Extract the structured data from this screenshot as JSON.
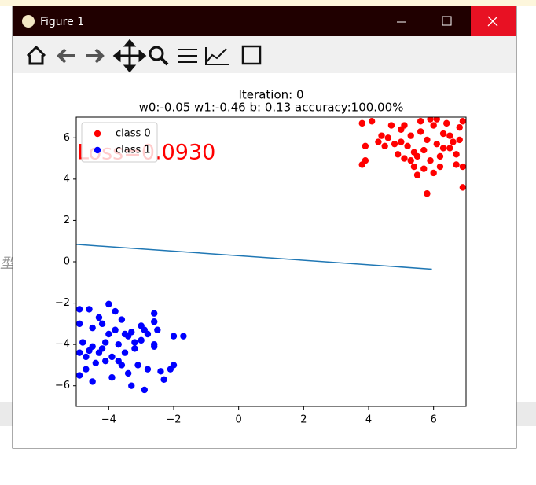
{
  "window": {
    "title": "Figure 1"
  },
  "background_text": "型",
  "chart_data": {
    "type": "scatter",
    "title": [
      "Iteration: 0",
      "w0:-0.05 w1:-0.46 b: 0.13 accuracy:100.00%"
    ],
    "annotation": {
      "text": "Loss=0.0930",
      "color": "red"
    },
    "xlim": [
      -5,
      7
    ],
    "ylim": [
      -7,
      7
    ],
    "xticks": [
      {
        "value": -4,
        "label": "−4"
      },
      {
        "value": -2,
        "label": "−2"
      },
      0,
      2,
      4,
      6
    ],
    "yticks": [
      {
        "value": -6,
        "label": "−6"
      },
      {
        "value": -4,
        "label": "−4"
      },
      {
        "value": -2,
        "label": "−2"
      },
      0,
      2,
      4,
      6
    ],
    "legend": "upper left",
    "series": [
      {
        "name": "class 0",
        "color": "red",
        "x": [
          3.8,
          4.1,
          4.4,
          3.9,
          3.8,
          3.9,
          4.5,
          4.7,
          4.8,
          5.0,
          5.1,
          5.3,
          5.2,
          5.4,
          5.5,
          5.6,
          5.8,
          5.7,
          5.9,
          6.0,
          6.1,
          6.2,
          6.3,
          6.5,
          6.6,
          6.7,
          6.8,
          6.9,
          6.9,
          5.8,
          6.0,
          5.5,
          5.1,
          4.9,
          6.4,
          6.2,
          5.9,
          5.6,
          6.9,
          6.7,
          5.3,
          4.3,
          6.5,
          5.0,
          6.1,
          5.7,
          6.3,
          4.6,
          6.8,
          5.4
        ],
        "values": [
          6.7,
          6.8,
          6.1,
          5.6,
          4.7,
          4.9,
          5.6,
          6.6,
          5.7,
          6.4,
          5.0,
          4.9,
          5.6,
          4.6,
          5.1,
          6.3,
          5.9,
          5.4,
          6.9,
          6.6,
          5.7,
          5.1,
          6.2,
          6.1,
          5.8,
          4.7,
          6.5,
          4.6,
          3.6,
          3.3,
          4.3,
          4.2,
          6.6,
          5.2,
          6.7,
          4.6,
          4.9,
          6.8,
          6.8,
          5.2,
          6.1,
          5.8,
          5.5,
          5.8,
          6.9,
          4.5,
          5.5,
          6.0,
          5.9,
          5.3
        ]
      },
      {
        "name": "class 1",
        "color": "blue",
        "x": [
          -4.9,
          -4.6,
          -4.3,
          -4.0,
          -3.6,
          -4.9,
          -4.5,
          -3.8,
          -3.4,
          -3.0,
          -2.6,
          -2.6,
          -2.8,
          -2.5,
          -1.7,
          -2.0,
          -2.6,
          -3.2,
          -3.7,
          -4.1,
          -4.5,
          -4.8,
          -4.9,
          -4.7,
          -4.4,
          -4.2,
          -3.9,
          -3.6,
          -3.4,
          -3.1,
          -2.8,
          -2.4,
          -2.3,
          -2.0,
          -2.1,
          -2.9,
          -3.3,
          -3.9,
          -4.5,
          -4.9,
          -4.7,
          -4.3,
          -3.5,
          -3.0,
          -3.3,
          -4.0,
          -4.2,
          -3.8,
          -2.9,
          -3.7,
          -4.1,
          -4.6,
          -3.2,
          -2.6,
          -3.5
        ],
        "values": [
          -2.3,
          -2.3,
          -2.7,
          -2.05,
          -2.8,
          -3.0,
          -3.2,
          -3.3,
          -3.6,
          -3.1,
          -2.5,
          -2.9,
          -3.5,
          -3.3,
          -3.6,
          -3.6,
          -4.0,
          -4.2,
          -4.0,
          -3.9,
          -4.1,
          -3.9,
          -4.4,
          -4.6,
          -4.9,
          -4.2,
          -4.6,
          -5.0,
          -5.4,
          -5.0,
          -5.2,
          -5.3,
          -5.7,
          -5.0,
          -5.2,
          -6.2,
          -6.0,
          -5.6,
          -5.8,
          -5.5,
          -5.2,
          -4.4,
          -4.4,
          -3.8,
          -3.4,
          -3.5,
          -3.0,
          -2.4,
          -3.3,
          -4.8,
          -4.8,
          -4.3,
          -3.9,
          -4.1,
          -3.5
        ]
      },
      {
        "type": "line",
        "color": "#1f77b4",
        "x": [
          -5,
          5.95
        ],
        "values": [
          0.84,
          -0.36
        ]
      }
    ]
  }
}
